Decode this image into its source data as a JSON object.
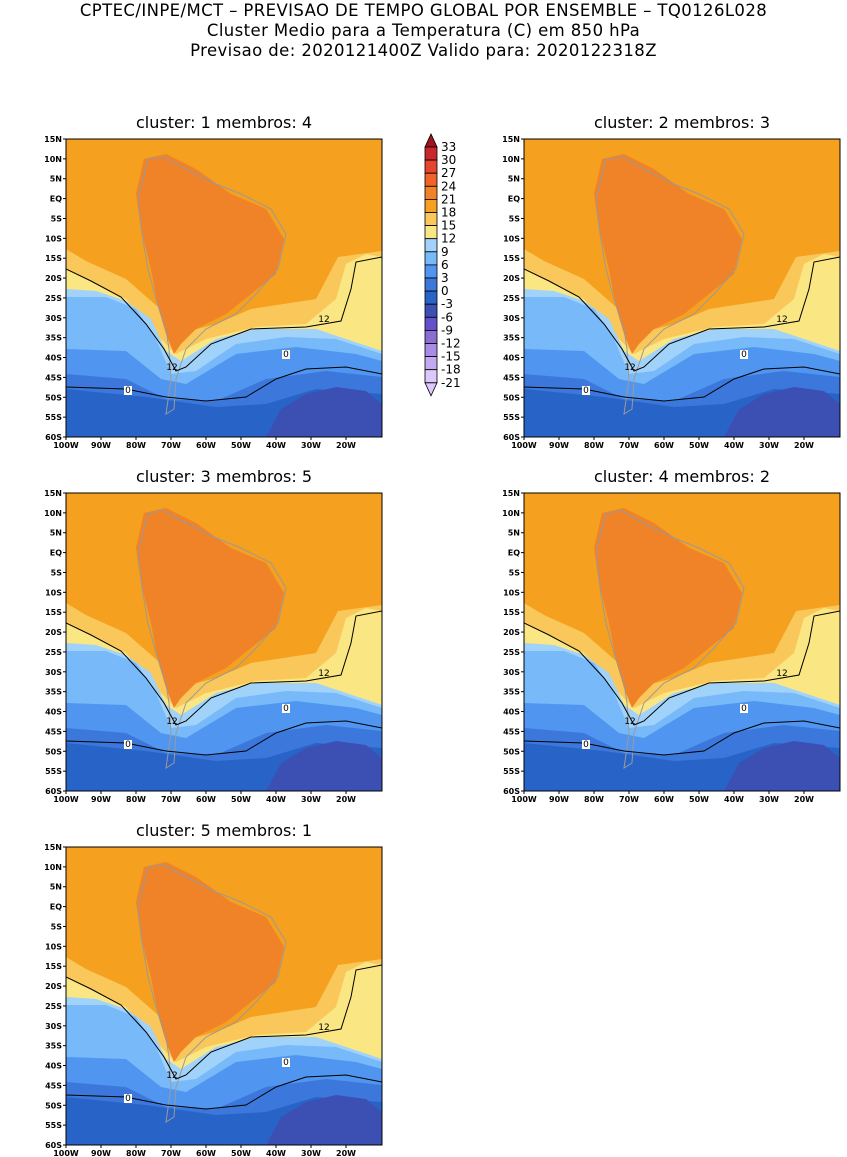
{
  "header": {
    "line1": "CPTEC/INPE/MCT – PREVISAO DE TEMPO GLOBAL POR ENSEMBLE – TQ0126L028",
    "line2": "Cluster Medio para a Temperatura (C) em 850 hPa",
    "line3": "Previsao de: 2020121400Z    Valido para: 2020122318Z"
  },
  "panels": [
    {
      "title": "cluster: 1   membros: 4"
    },
    {
      "title": "cluster: 2   membros: 3"
    },
    {
      "title": "cluster: 3   membros: 5"
    },
    {
      "title": "cluster: 4   membros: 2"
    },
    {
      "title": "cluster: 5   membros: 1"
    }
  ],
  "axes": {
    "lat_labels": [
      "15N",
      "10N",
      "5N",
      "EQ",
      "5S",
      "10S",
      "15S",
      "20S",
      "25S",
      "30S",
      "35S",
      "40S",
      "45S",
      "50S",
      "55S",
      "60S"
    ],
    "lon_labels": [
      "100W",
      "90W",
      "80W",
      "70W",
      "60W",
      "50W",
      "40W",
      "30W",
      "20W"
    ]
  },
  "colorbar": {
    "labels": [
      "33",
      "30",
      "27",
      "24",
      "21",
      "18",
      "15",
      "12",
      "9",
      "6",
      "3",
      "0",
      "-3",
      "-6",
      "-9",
      "-12",
      "-15",
      "-18",
      "-21"
    ],
    "colors": [
      "#a0141e",
      "#c8282d",
      "#e6462e",
      "#f06428",
      "#f08228",
      "#f5a01e",
      "#fac85a",
      "#fae682",
      "#a0d2fa",
      "#78b9fa",
      "#5096f0",
      "#3c78dc",
      "#2864c8",
      "#3c50b4",
      "#6450c8",
      "#8c6ed2",
      "#aa8ce6",
      "#c3aaf0",
      "#dcc8fa"
    ]
  },
  "contour_labels": {
    "twelve": "12",
    "zero": "0"
  }
}
